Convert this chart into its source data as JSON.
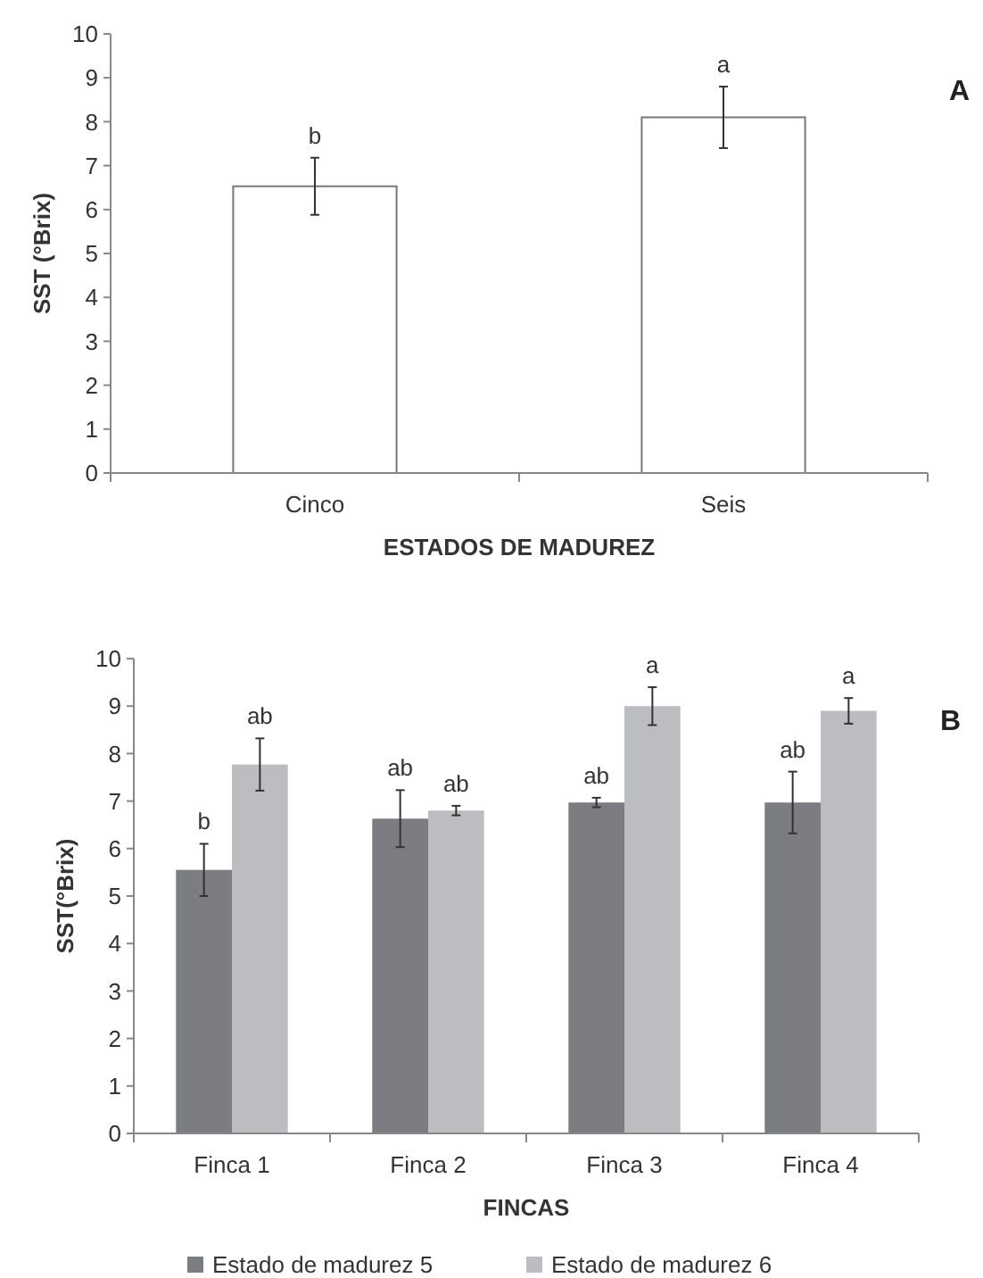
{
  "chart_data": [
    {
      "type": "bar",
      "xlabel": "ESTADOS DE MADUREZ",
      "ylabel": "SST (°Brix)",
      "categories": [
        "Cinco",
        "Seis"
      ],
      "ylim": [
        0,
        10
      ],
      "yticks": [
        0,
        1,
        2,
        3,
        4,
        5,
        6,
        7,
        8,
        9,
        10
      ],
      "grid": false,
      "legend": false,
      "annotations": [
        "A"
      ],
      "series": [
        {
          "color": "#ffffff",
          "values": [
            6.53,
            8.1
          ],
          "errors": [
            0.65,
            0.7
          ],
          "value_labels": [
            "b",
            "a"
          ]
        }
      ]
    },
    {
      "type": "bar",
      "xlabel": "FINCAS",
      "ylabel": "SST(°Brix)",
      "categories": [
        "Finca 1",
        "Finca 2",
        "Finca 3",
        "Finca 4"
      ],
      "ylim": [
        0,
        10
      ],
      "yticks": [
        0,
        1,
        2,
        3,
        4,
        5,
        6,
        7,
        8,
        9,
        10
      ],
      "grid": false,
      "legend": "bottom",
      "annotations": [
        "B"
      ],
      "series": [
        {
          "name": "Estado de madurez 5",
          "color": "#7c7d81",
          "values": [
            5.55,
            6.63,
            6.97,
            6.97
          ],
          "errors": [
            0.55,
            0.6,
            0.1,
            0.65
          ],
          "value_labels": [
            "b",
            "ab",
            "ab",
            "ab"
          ]
        },
        {
          "name": "Estado de madurez 6",
          "color": "#bcbdc1",
          "values": [
            7.77,
            6.8,
            9.0,
            8.9
          ],
          "errors": [
            0.55,
            0.1,
            0.4,
            0.27
          ],
          "value_labels": [
            "ab",
            "ab",
            "a",
            "a"
          ]
        }
      ]
    }
  ]
}
